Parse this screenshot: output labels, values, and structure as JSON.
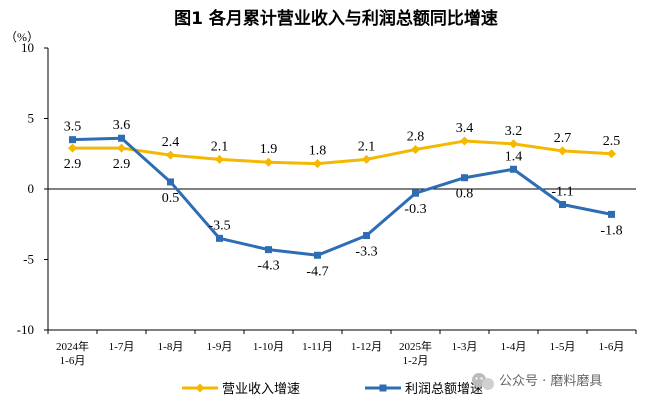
{
  "chart_data": {
    "type": "line",
    "title": "图1  各月累计营业收入与利润总额同比增速",
    "unit_label": "（%）",
    "categories": [
      [
        "2024年",
        "1-6月"
      ],
      [
        "1-7月"
      ],
      [
        "1-8月"
      ],
      [
        "1-9月"
      ],
      [
        "1-10月"
      ],
      [
        "1-11月"
      ],
      [
        "1-12月"
      ],
      [
        "2025年",
        "1-2月"
      ],
      [
        "1-3月"
      ],
      [
        "1-4月"
      ],
      [
        "1-5月"
      ],
      [
        "1-6月"
      ]
    ],
    "ylim": [
      -10,
      10
    ],
    "yticks": [
      10,
      5,
      0,
      -5,
      -10
    ],
    "legend_position": "bottom",
    "series": [
      {
        "name": "营业收入增速",
        "color": "#F5B800",
        "marker": "diamond",
        "values": [
          2.9,
          2.9,
          2.4,
          2.1,
          1.9,
          1.8,
          2.1,
          2.8,
          3.4,
          3.2,
          2.7,
          2.5
        ],
        "labels": [
          "2.9",
          "2.9",
          "2.4",
          "2.1",
          "1.9",
          "1.8",
          "2.1",
          "2.8",
          "3.4",
          "3.2",
          "2.7",
          "2.5"
        ]
      },
      {
        "name": "利润总额增速",
        "color": "#2E6DB4",
        "marker": "square",
        "values": [
          3.5,
          3.6,
          0.5,
          -3.5,
          -4.3,
          -4.7,
          -3.3,
          -0.3,
          0.8,
          1.4,
          -1.1,
          -1.8
        ],
        "labels": [
          "3.5",
          "3.6",
          "0.5",
          "-3.5",
          "-4.3",
          "-4.7",
          "-3.3",
          "-0.3",
          "0.8",
          "1.4",
          "-1.1",
          "-1.8"
        ]
      }
    ]
  },
  "watermark": {
    "icon": "wechat-icon",
    "text": "公众号 · 磨料磨具"
  }
}
